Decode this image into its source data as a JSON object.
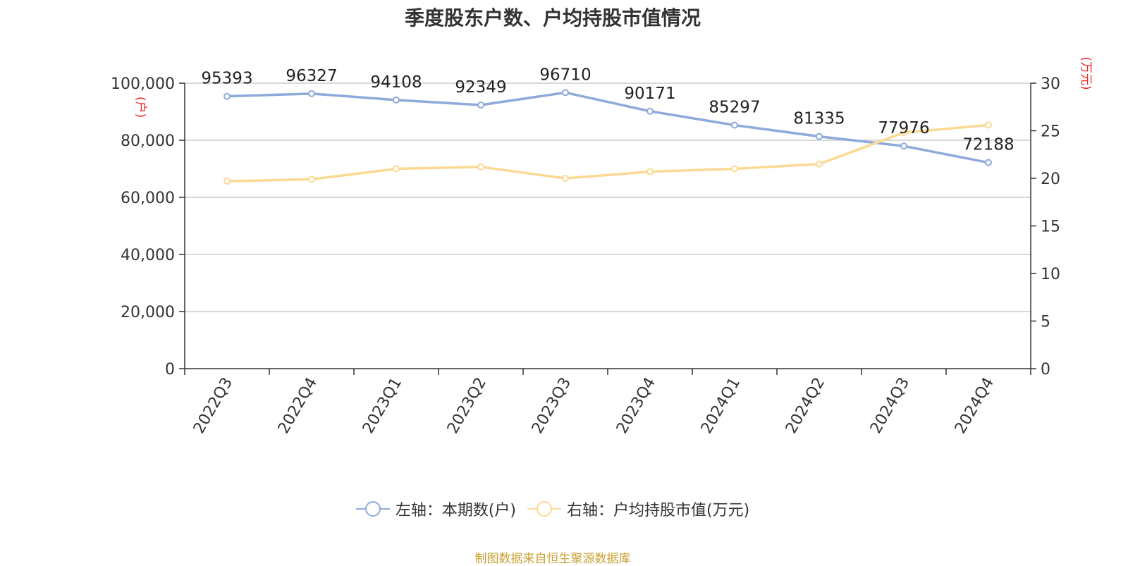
{
  "chart_data": {
    "type": "line",
    "title": "季度股东户数、户均持股市值情况",
    "categories": [
      "2022Q3",
      "2022Q4",
      "2023Q1",
      "2023Q2",
      "2023Q3",
      "2023Q4",
      "2024Q1",
      "2024Q2",
      "2024Q3",
      "2024Q4"
    ],
    "series": [
      {
        "name": "左轴：本期数(户)",
        "axis": "left",
        "color": "#8eaadb",
        "values": [
          95393,
          96327,
          94108,
          92349,
          96710,
          90171,
          85297,
          81335,
          77976,
          72188
        ],
        "data_labels": true
      },
      {
        "name": "右轴：户均持股市值(万元)",
        "axis": "right",
        "color": "#fcd993",
        "values": [
          19.7,
          19.9,
          21.0,
          21.2,
          20.0,
          20.7,
          21.0,
          21.5,
          24.8,
          25.6
        ],
        "data_labels": false
      }
    ],
    "y_left": {
      "label": "(户)",
      "ylim": [
        0,
        100000
      ],
      "ticks": [
        "0",
        "20,000",
        "40,000",
        "60,000",
        "80,000",
        "100,000"
      ]
    },
    "y_right": {
      "label": "(万元)",
      "ylim": [
        0,
        30
      ],
      "ticks": [
        "0",
        "5",
        "10",
        "15",
        "20",
        "25",
        "30"
      ]
    },
    "grid": true,
    "legend_position": "bottom-center"
  },
  "footer": {
    "source": "制图数据来自恒生聚源数据库"
  }
}
